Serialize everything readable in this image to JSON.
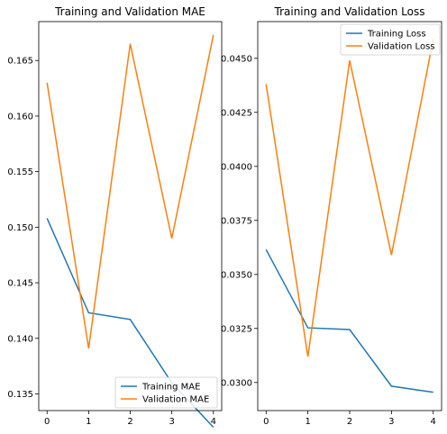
{
  "chart_data": [
    {
      "type": "line",
      "title": "Training and Validation MAE",
      "xlabel": "",
      "ylabel": "",
      "x": [
        0,
        1,
        2,
        3,
        4
      ],
      "xlim": [
        -0.2,
        4.2
      ],
      "ylim": [
        0.1335,
        0.1685
      ],
      "xticks": [
        "0",
        "1",
        "2",
        "3",
        "4"
      ],
      "yticks": [
        "0.135",
        "0.140",
        "0.145",
        "0.150",
        "0.155",
        "0.160",
        "0.165"
      ],
      "legend_position": "lower-right",
      "series": [
        {
          "name": "Training MAE",
          "color": "#1f77b4",
          "values": [
            0.1508,
            0.1423,
            0.1417,
            0.136,
            0.132
          ]
        },
        {
          "name": "Validation MAE",
          "color": "#ff7f0e",
          "values": [
            0.163,
            0.1391,
            0.1665,
            0.149,
            0.1673
          ]
        }
      ]
    },
    {
      "type": "line",
      "title": "Training and Validation Loss",
      "xlabel": "",
      "ylabel": "",
      "x": [
        0,
        1,
        2,
        3,
        4
      ],
      "xlim": [
        -0.2,
        4.2
      ],
      "ylim": [
        0.0287,
        0.0467
      ],
      "xticks": [
        "0",
        "1",
        "2",
        "3",
        "4"
      ],
      "yticks": [
        "0.0300",
        "0.0325",
        "0.0350",
        "0.0375",
        "0.0400",
        "0.0425",
        "0.0450"
      ],
      "legend_position": "upper-right",
      "series": [
        {
          "name": "Training Loss",
          "color": "#1f77b4",
          "values": [
            0.03615,
            0.03253,
            0.03245,
            0.02983,
            0.02955
          ]
        },
        {
          "name": "Validation Loss",
          "color": "#ff7f0e",
          "values": [
            0.0438,
            0.0312,
            0.0449,
            0.0359,
            0.0459
          ]
        }
      ]
    }
  ]
}
